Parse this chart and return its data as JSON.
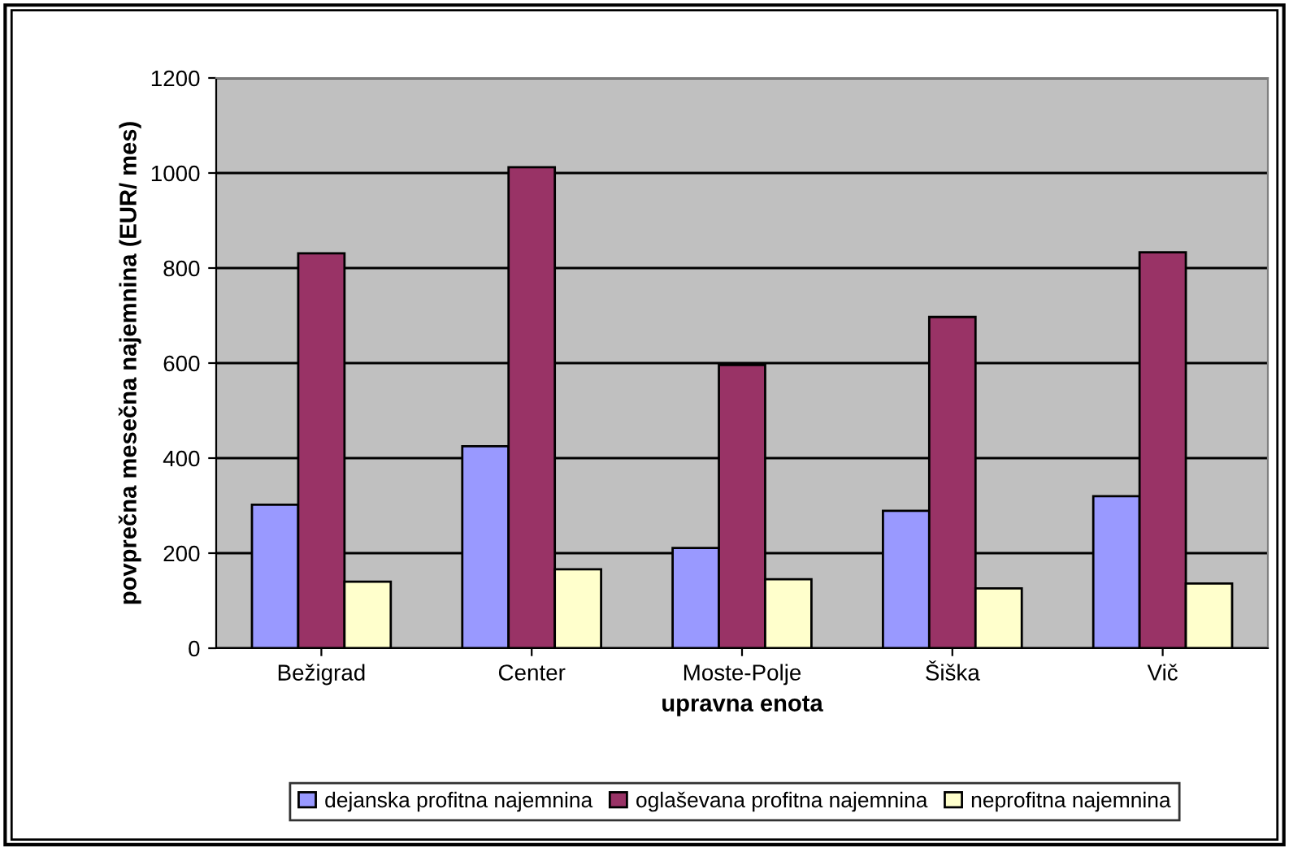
{
  "chart_data": {
    "type": "bar",
    "xlabel": "upravna enota",
    "ylabel": "povprečna mesečna najemnina (EUR/ mes)",
    "categories": [
      "Bežigrad",
      "Center",
      "Moste-Polje",
      "Šiška",
      "Vič"
    ],
    "series": [
      {
        "name": "dejanska profitna najemnina",
        "color": "#9999ff",
        "values": [
          302,
          425,
          211,
          289,
          320
        ]
      },
      {
        "name": "oglaševana profitna najemnina",
        "color": "#993366",
        "values": [
          831,
          1012,
          596,
          697,
          833
        ]
      },
      {
        "name": "neprofitna najemnina",
        "color": "#ffffcc",
        "values": [
          140,
          166,
          145,
          126,
          136
        ]
      }
    ],
    "ylim": [
      0,
      1200
    ],
    "yticks": [
      0,
      200,
      400,
      600,
      800,
      1000,
      1200
    ],
    "grid": "y",
    "legend": "bottom"
  }
}
